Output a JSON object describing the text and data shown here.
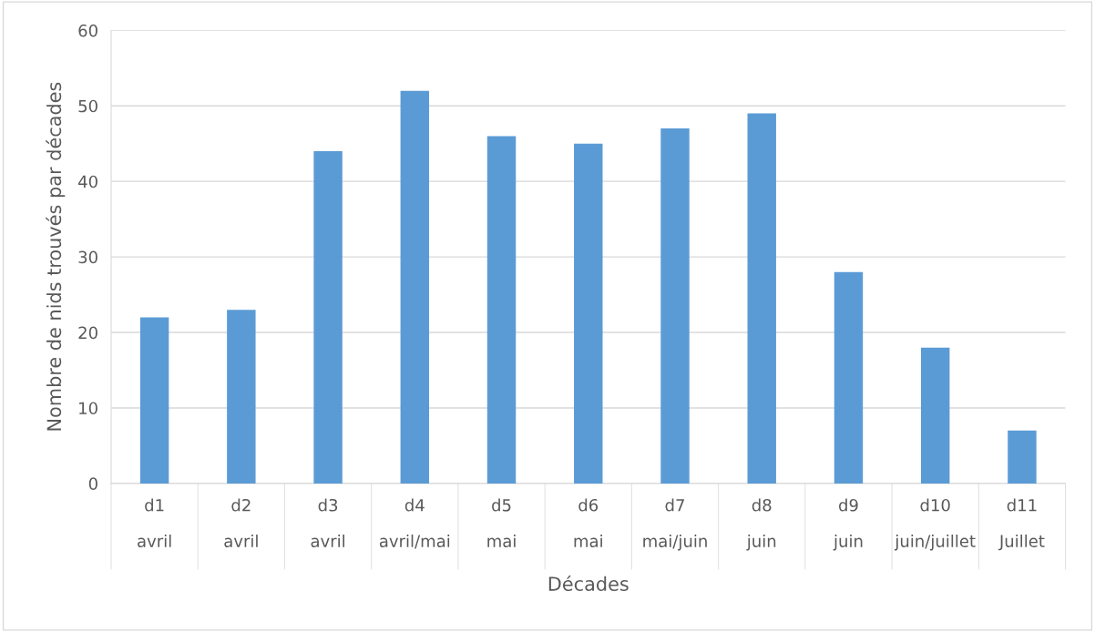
{
  "chart_data": {
    "type": "bar",
    "categories": [
      "d1\navril",
      "d2\navril",
      "d3\navril",
      "d4\navril/mai",
      "d5\nmai",
      "d6\nmai",
      "d7\nmai/juin",
      "d8\njuin",
      "d9\njuin",
      "d10\njuin/juillet",
      "d11\nJuillet"
    ],
    "values": [
      22,
      23,
      44,
      52,
      46,
      45,
      47,
      49,
      28,
      18,
      7
    ],
    "color": "#5b9bd5",
    "xlabel": "Décades",
    "ylabel": "Nombre de nids trouvés par décades",
    "ylim": [
      0,
      60
    ],
    "yticks": [
      0,
      10,
      20,
      30,
      40,
      50,
      60
    ],
    "grid": "y"
  }
}
